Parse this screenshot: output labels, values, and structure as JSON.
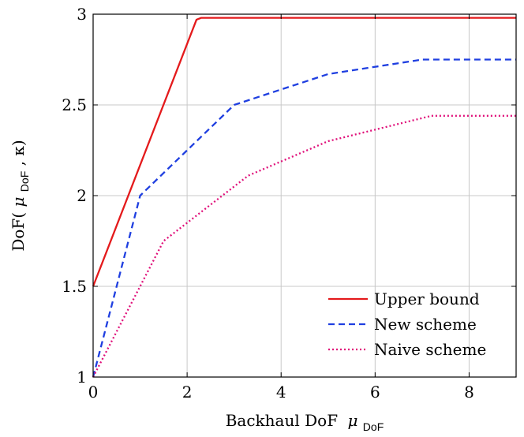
{
  "chart_data": {
    "type": "line",
    "title": "",
    "xlabel_text": "Backhaul DoF",
    "xlabel_sym": "μ",
    "xlabel_sub": "DoF",
    "ylabel_prefix": "DoF(",
    "ylabel_sym": "μ",
    "ylabel_sub": "DoF",
    "ylabel_suffix": ", κ)",
    "xlim": [
      0,
      9
    ],
    "ylim": [
      1,
      3
    ],
    "xticks": [
      0,
      2,
      4,
      6,
      8
    ],
    "xtick_labels": [
      "0",
      "2",
      "4",
      "6",
      "8"
    ],
    "yticks": [
      1,
      1.5,
      2,
      2.5,
      3
    ],
    "ytick_labels": [
      "1",
      "1.5",
      "2",
      "2.5",
      "3"
    ],
    "grid": true,
    "legend_position": "bottom-right",
    "series": [
      {
        "name": "Upper bound",
        "color": "#e41a1c",
        "style": "solid",
        "x": [
          0,
          2.2,
          2.3,
          9
        ],
        "y": [
          1.5,
          2.97,
          2.98,
          2.98
        ]
      },
      {
        "name": "New scheme",
        "color": "#1f3fe0",
        "style": "dashed",
        "x": [
          0,
          1,
          3,
          5,
          7,
          9
        ],
        "y": [
          1,
          2,
          2.5,
          2.67,
          2.75,
          2.75
        ]
      },
      {
        "name": "Naive scheme",
        "color": "#e0107a",
        "style": "dotted",
        "x": [
          0,
          1.5,
          3.3,
          5,
          7.2,
          9
        ],
        "y": [
          1,
          1.75,
          2.11,
          2.3,
          2.44,
          2.44
        ]
      }
    ]
  }
}
